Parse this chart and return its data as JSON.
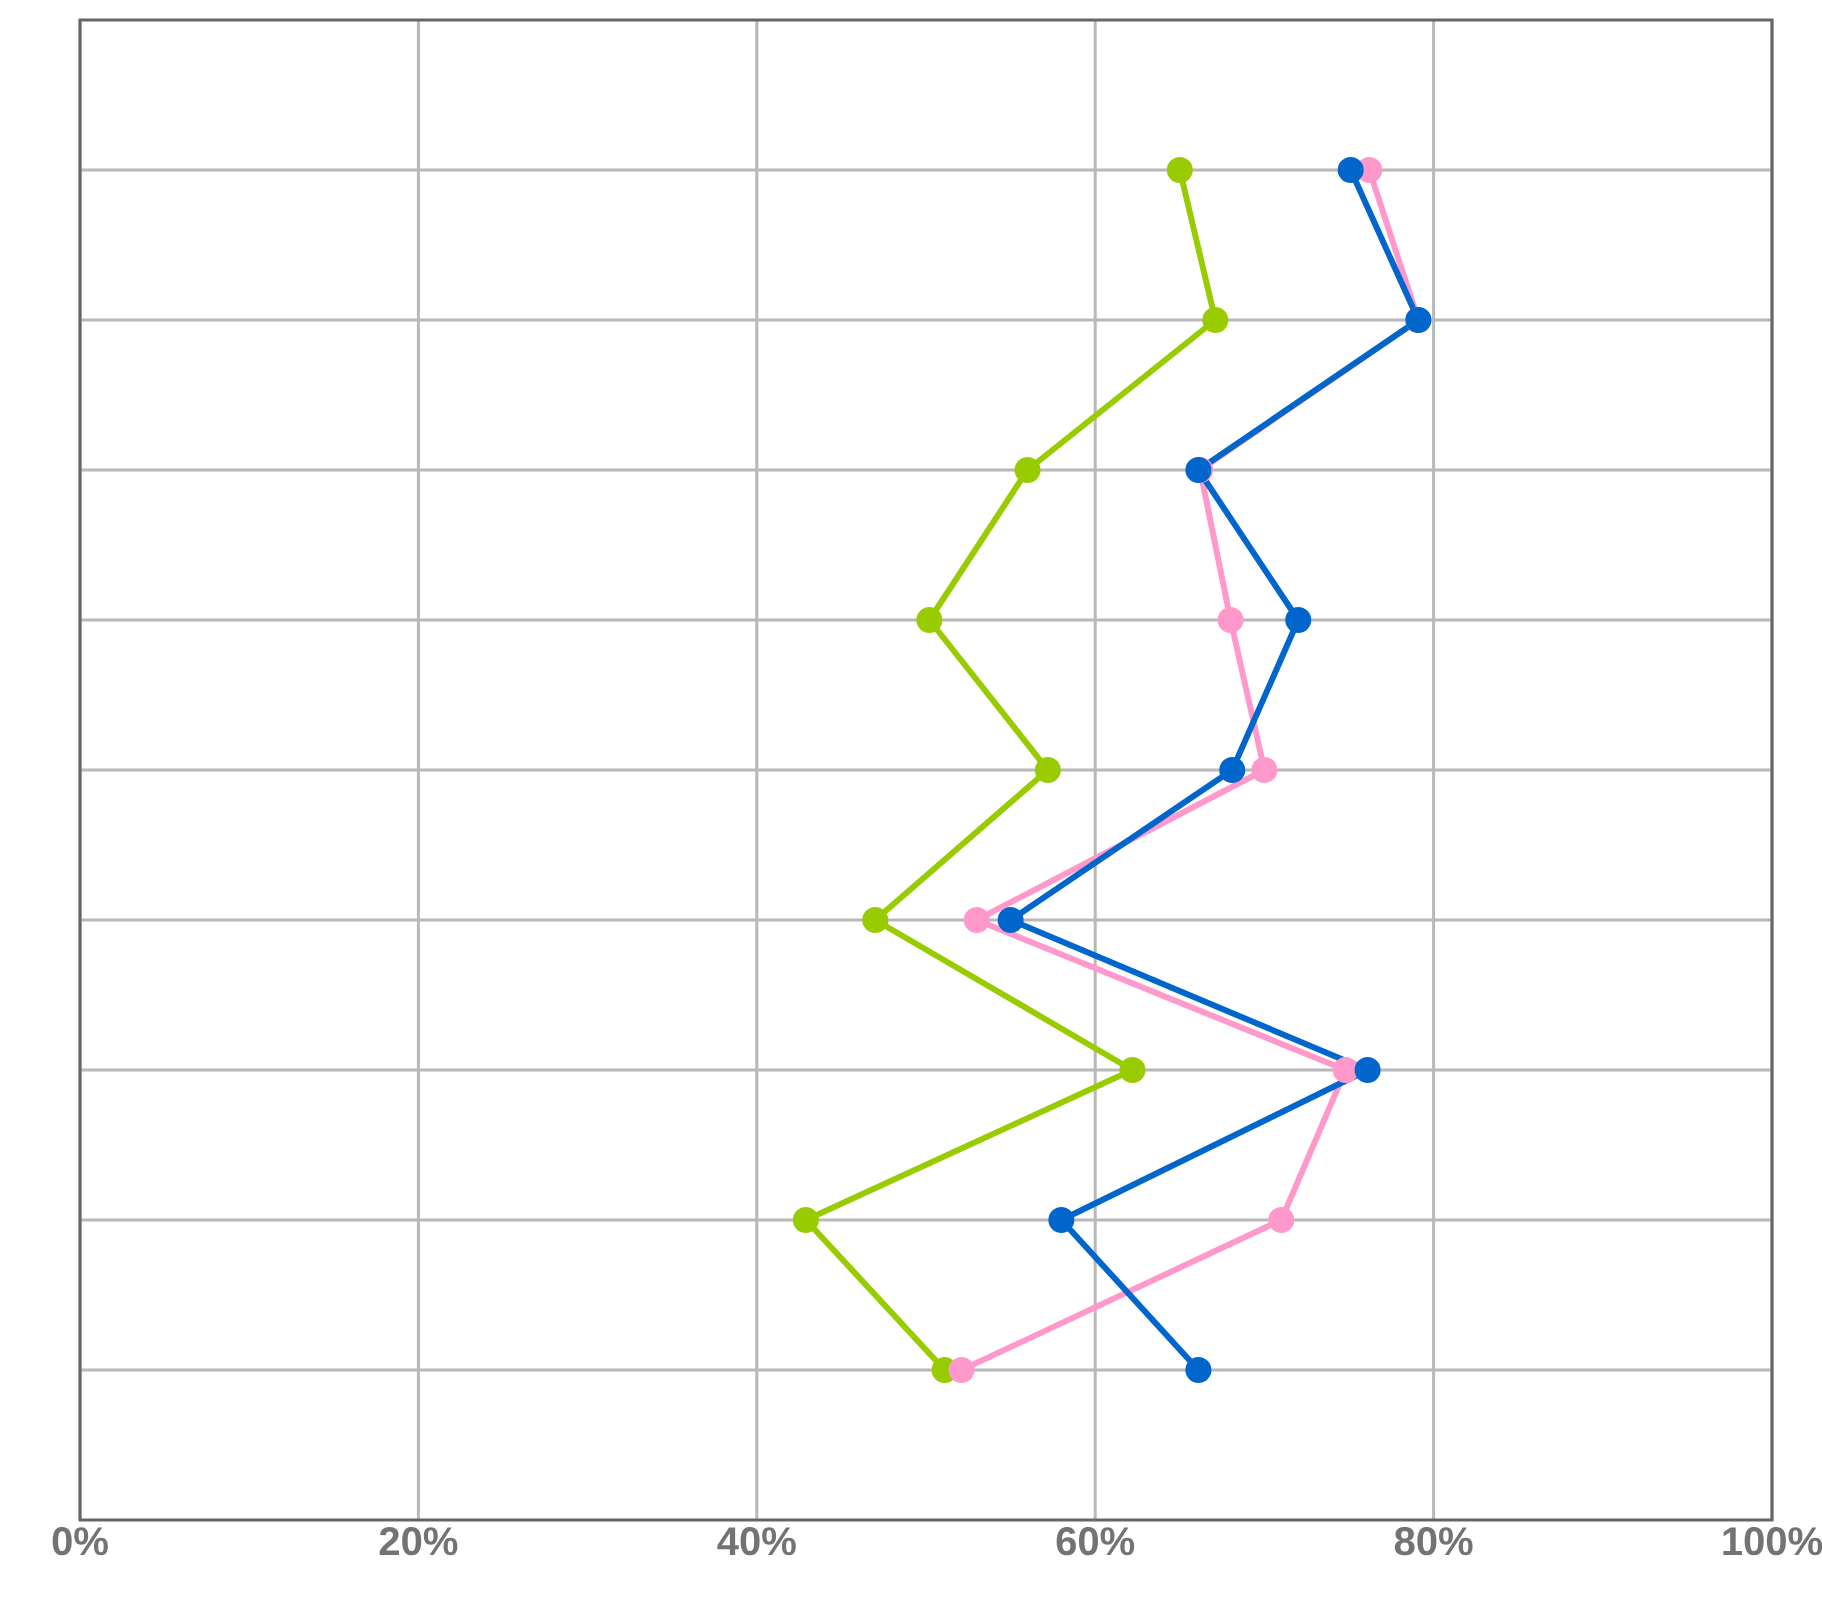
{
  "chart_data": {
    "type": "line",
    "orientation": "horizontal",
    "categories": [
      null,
      null,
      null,
      null,
      null,
      null,
      null,
      null,
      null
    ],
    "series": [
      {
        "color": "#99cc00",
        "values": [
          65.0,
          67.1,
          56.0,
          50.2,
          57.2,
          47.0,
          62.2,
          42.9,
          51.1
        ]
      },
      {
        "color": "#ff99cc",
        "values": [
          76.2,
          79.1,
          66.2,
          68.0,
          70.0,
          53.0,
          74.8,
          71.0,
          52.1
        ]
      },
      {
        "color": "#0066cc",
        "values": [
          75.1,
          79.1,
          66.1,
          72.0,
          68.1,
          55.0,
          76.1,
          58.0,
          66.1
        ]
      }
    ],
    "xlim": [
      0,
      100
    ],
    "xticks": [
      {
        "value": 0,
        "label": "0%"
      },
      {
        "value": 20,
        "label": "20%"
      },
      {
        "value": 40,
        "label": "40%"
      },
      {
        "value": 60,
        "label": "60%"
      },
      {
        "value": 80,
        "label": "80%"
      },
      {
        "value": 100,
        "label": "100%"
      }
    ],
    "grid": true,
    "marker": "circle",
    "line_style": "solid",
    "tick_labels": "x"
  }
}
